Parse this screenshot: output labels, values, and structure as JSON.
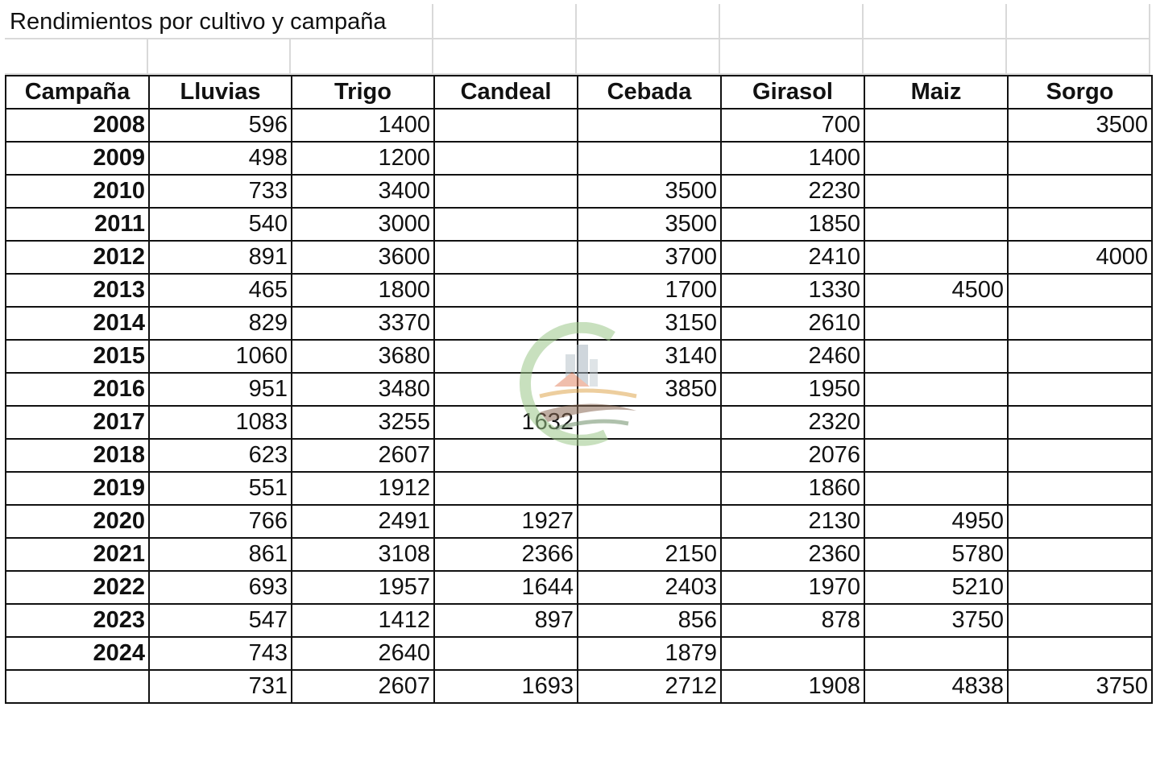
{
  "title": "Rendimientos por cultivo y campaña",
  "columns": [
    "Campaña",
    "Lluvias",
    "Trigo",
    "Candeal",
    "Cebada",
    "Girasol",
    "Maiz",
    "Sorgo"
  ],
  "rows": [
    [
      "2008",
      "596",
      "1400",
      "",
      "",
      "700",
      "",
      "3500"
    ],
    [
      "2009",
      "498",
      "1200",
      "",
      "",
      "1400",
      "",
      ""
    ],
    [
      "2010",
      "733",
      "3400",
      "",
      "3500",
      "2230",
      "",
      ""
    ],
    [
      "2011",
      "540",
      "3000",
      "",
      "3500",
      "1850",
      "",
      ""
    ],
    [
      "2012",
      "891",
      "3600",
      "",
      "3700",
      "2410",
      "",
      "4000"
    ],
    [
      "2013",
      "465",
      "1800",
      "",
      "1700",
      "1330",
      "4500",
      ""
    ],
    [
      "2014",
      "829",
      "3370",
      "",
      "3150",
      "2610",
      "",
      ""
    ],
    [
      "2015",
      "1060",
      "3680",
      "",
      "3140",
      "2460",
      "",
      ""
    ],
    [
      "2016",
      "951",
      "3480",
      "",
      "3850",
      "1950",
      "",
      ""
    ],
    [
      "2017",
      "1083",
      "3255",
      "1632",
      "",
      "2320",
      "",
      ""
    ],
    [
      "2018",
      "623",
      "2607",
      "",
      "",
      "2076",
      "",
      ""
    ],
    [
      "2019",
      "551",
      "1912",
      "",
      "",
      "1860",
      "",
      ""
    ],
    [
      "2020",
      "766",
      "2491",
      "1927",
      "",
      "2130",
      "4950",
      ""
    ],
    [
      "2021",
      "861",
      "3108",
      "2366",
      "2150",
      "2360",
      "5780",
      ""
    ],
    [
      "2022",
      "693",
      "1957",
      "1644",
      "2403",
      "1970",
      "5210",
      ""
    ],
    [
      "2023",
      "547",
      "1412",
      "897",
      "856",
      "878",
      "3750",
      ""
    ],
    [
      "2024",
      "743",
      "2640",
      "",
      "1879",
      "",
      "",
      ""
    ]
  ],
  "averages": [
    "",
    "731",
    "2607",
    "1693",
    "2712",
    "1908",
    "4838",
    "3750"
  ],
  "watermark": {
    "icon": "logo-watermark-icon",
    "colors": [
      "#8fbf7f",
      "#8a6a55",
      "#5a8fb8"
    ]
  }
}
